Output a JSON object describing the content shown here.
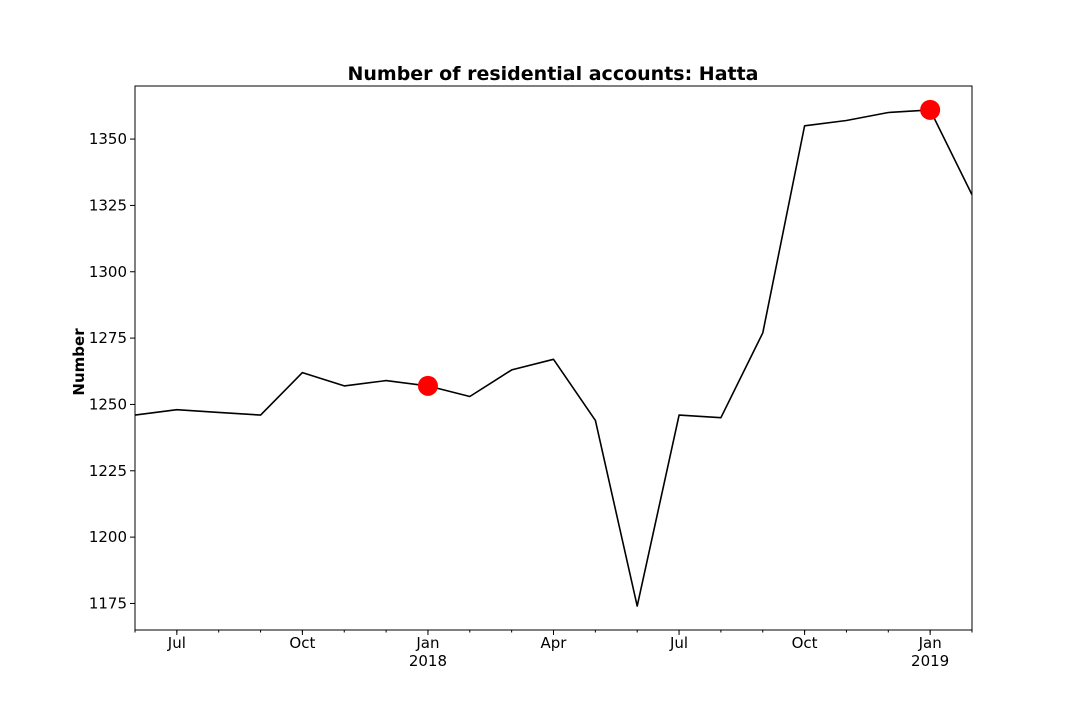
{
  "chart_data": {
    "type": "line",
    "title": "Number of residential accounts: Hatta",
    "xlabel": "",
    "ylabel": "Number",
    "xlim": [
      "2017-06",
      "2019-02"
    ],
    "ylim": [
      1165,
      1370
    ],
    "yticks": [
      1175,
      1200,
      1225,
      1250,
      1275,
      1300,
      1325,
      1350
    ],
    "xticks": [
      {
        "date": "2017-07",
        "label": "Jul",
        "sublabel": ""
      },
      {
        "date": "2017-10",
        "label": "Oct",
        "sublabel": ""
      },
      {
        "date": "2018-01",
        "label": "Jan",
        "sublabel": "2018"
      },
      {
        "date": "2018-04",
        "label": "Apr",
        "sublabel": ""
      },
      {
        "date": "2018-07",
        "label": "Jul",
        "sublabel": ""
      },
      {
        "date": "2018-10",
        "label": "Oct",
        "sublabel": ""
      },
      {
        "date": "2019-01",
        "label": "Jan",
        "sublabel": "2019"
      }
    ],
    "series": [
      {
        "color": "#000000",
        "x": [
          "2017-06",
          "2017-07",
          "2017-08",
          "2017-09",
          "2017-10",
          "2017-11",
          "2017-12",
          "2018-01",
          "2018-02",
          "2018-03",
          "2018-04",
          "2018-05",
          "2018-06",
          "2018-07",
          "2018-08",
          "2018-09",
          "2018-10",
          "2018-11",
          "2018-12",
          "2019-01",
          "2019-02"
        ],
        "values": [
          1246,
          1248,
          1247,
          1246,
          1262,
          1257,
          1259,
          1257,
          1253,
          1263,
          1267,
          1244,
          1174,
          1246,
          1245,
          1277,
          1355,
          1357,
          1360,
          1361,
          1329
        ]
      }
    ],
    "highlights": [
      {
        "x": "2018-01",
        "value": 1257,
        "color": "#ff0000"
      },
      {
        "x": "2019-01",
        "value": 1361,
        "color": "#ff0000"
      }
    ],
    "grid": false
  }
}
